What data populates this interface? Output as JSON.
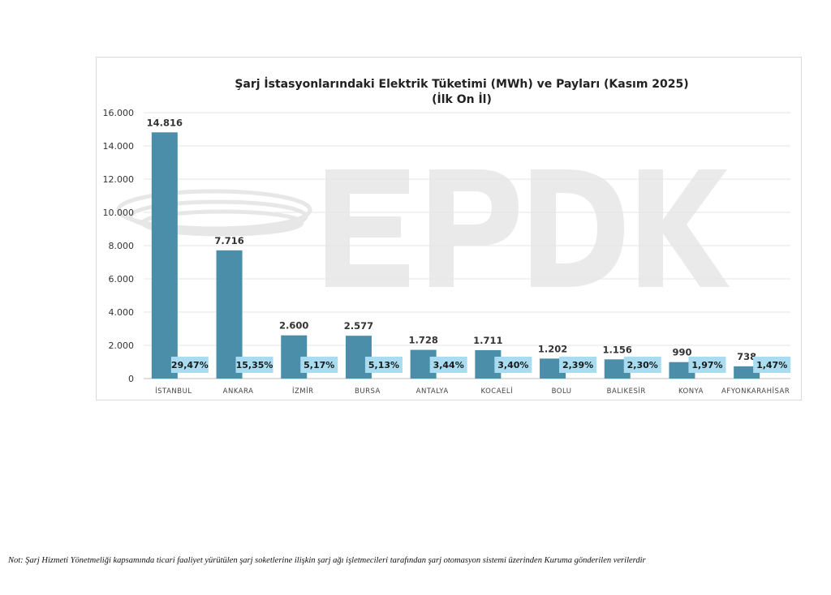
{
  "chart_data": {
    "type": "bar",
    "title": "Şarj İstasyonlarındaki Elektrik Tüketimi (MWh) ve Payları (Kasım 2025)",
    "subtitle": "(İlk On İl)",
    "categories": [
      "İSTANBUL",
      "ANKARA",
      "İZMİR",
      "BURSA",
      "ANTALYA",
      "KOCAELİ",
      "BOLU",
      "BALIKESİR",
      "KONYA",
      "AFYONKARAHİSAR"
    ],
    "values": [
      14816,
      7716,
      2600,
      2577,
      1728,
      1711,
      1202,
      1156,
      990,
      738
    ],
    "value_labels": [
      "14.816",
      "7.716",
      "2.600",
      "2.577",
      "1.728",
      "1.711",
      "1.202",
      "1.156",
      "990",
      "738"
    ],
    "share_labels": [
      "29,47%",
      "15,35%",
      "5,17%",
      "5,13%",
      "3,44%",
      "3,40%",
      "2,39%",
      "2,30%",
      "1,97%",
      "1,47%"
    ],
    "ylim": [
      0,
      16000
    ],
    "yticks": [
      0,
      2000,
      4000,
      6000,
      8000,
      10000,
      12000,
      14000,
      16000
    ],
    "ytick_labels": [
      "0",
      "2.000",
      "4.000",
      "6.000",
      "8.000",
      "10.000",
      "12.000",
      "14.000",
      "16.000"
    ],
    "grid": true,
    "bar_color": "#4a8ea9",
    "share_box_color": "#a9dcf0",
    "watermark": "EPDK"
  },
  "note": "Not: Şarj Hizmeti Yönetmeliği kapsamında ticari faaliyet yürütülen şarj soketlerine ilişkin şarj ağı işletmecileri tarafından şarj otomasyon sistemi üzerinden Kuruma gönderilen verilerdir"
}
